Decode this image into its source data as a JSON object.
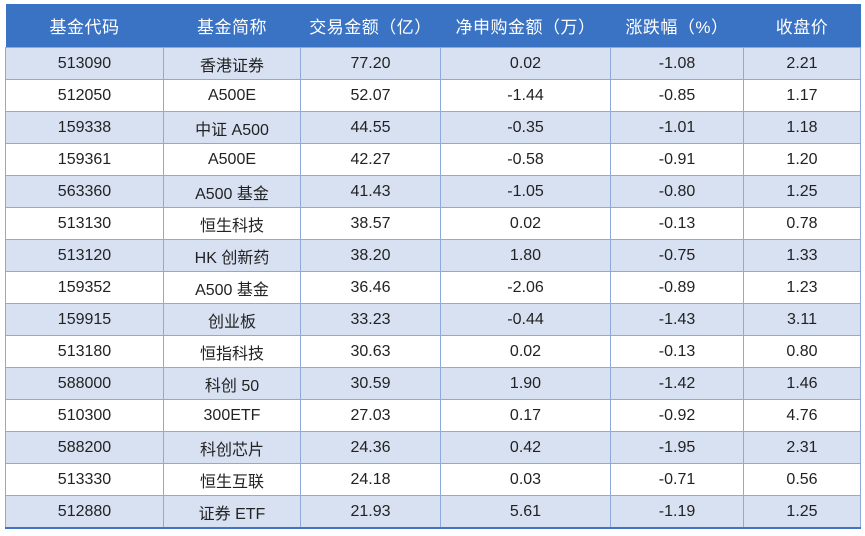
{
  "chart_data": {
    "type": "table",
    "title": "",
    "columns": [
      "基金代码",
      "基金简称",
      "交易金额（亿）",
      "净申购金额（万）",
      "涨跌幅（%）",
      "收盘价"
    ],
    "column_keys": [
      "code",
      "name",
      "turnover",
      "net",
      "change",
      "close"
    ],
    "rows": [
      {
        "code": "513090",
        "name": "香港证券",
        "turnover": "77.20",
        "net": "0.02",
        "change": "-1.08",
        "close": "2.21"
      },
      {
        "code": "512050",
        "name": "A500E",
        "turnover": "52.07",
        "net": "-1.44",
        "change": "-0.85",
        "close": "1.17"
      },
      {
        "code": "159338",
        "name": "中证 A500",
        "turnover": "44.55",
        "net": "-0.35",
        "change": "-1.01",
        "close": "1.18"
      },
      {
        "code": "159361",
        "name": "A500E",
        "turnover": "42.27",
        "net": "-0.58",
        "change": "-0.91",
        "close": "1.20"
      },
      {
        "code": "563360",
        "name": "A500 基金",
        "turnover": "41.43",
        "net": "-1.05",
        "change": "-0.80",
        "close": "1.25"
      },
      {
        "code": "513130",
        "name": "恒生科技",
        "turnover": "38.57",
        "net": "0.02",
        "change": "-0.13",
        "close": "0.78"
      },
      {
        "code": "513120",
        "name": "HK 创新药",
        "turnover": "38.20",
        "net": "1.80",
        "change": "-0.75",
        "close": "1.33"
      },
      {
        "code": "159352",
        "name": "A500 基金",
        "turnover": "36.46",
        "net": "-2.06",
        "change": "-0.89",
        "close": "1.23"
      },
      {
        "code": "159915",
        "name": "创业板",
        "turnover": "33.23",
        "net": "-0.44",
        "change": "-1.43",
        "close": "3.11"
      },
      {
        "code": "513180",
        "name": "恒指科技",
        "turnover": "30.63",
        "net": "0.02",
        "change": "-0.13",
        "close": "0.80"
      },
      {
        "code": "588000",
        "name": "科创 50",
        "turnover": "30.59",
        "net": "1.90",
        "change": "-1.42",
        "close": "1.46"
      },
      {
        "code": "510300",
        "name": "300ETF",
        "turnover": "27.03",
        "net": "0.17",
        "change": "-0.92",
        "close": "4.76"
      },
      {
        "code": "588200",
        "name": "科创芯片",
        "turnover": "24.36",
        "net": "0.42",
        "change": "-1.95",
        "close": "2.31"
      },
      {
        "code": "513330",
        "name": "恒生互联",
        "turnover": "24.18",
        "net": "0.03",
        "change": "-0.71",
        "close": "0.56"
      },
      {
        "code": "512880",
        "name": "证券 ETF",
        "turnover": "21.93",
        "net": "5.61",
        "change": "-1.19",
        "close": "1.25"
      }
    ]
  },
  "colors": {
    "header_bg": "#3A72C4",
    "header_text": "#FFFFFF",
    "band_row_bg": "#D8E1F2",
    "plain_row_bg": "#FFFFFF",
    "grid_border": "#8EAADB",
    "bottom_border": "#4472C4",
    "cell_text": "#222222"
  }
}
